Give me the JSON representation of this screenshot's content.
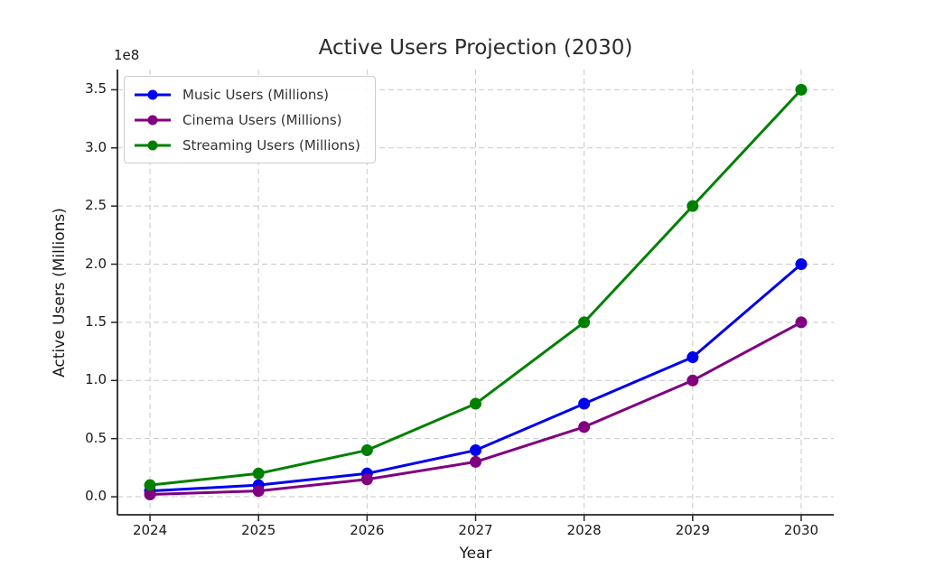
{
  "figure": {
    "title": "Active Users Projection (2030)",
    "xlabel": "Year",
    "ylabel": "Active Users (Millions)",
    "y_offset_label": "1e8"
  },
  "chart_data": {
    "type": "line",
    "title": "Active Users Projection (2030)",
    "xlabel": "Year",
    "ylabel": "Active Users (Millions)",
    "y_axis_multiplier_label": "1e8",
    "x": [
      2024,
      2025,
      2026,
      2027,
      2028,
      2029,
      2030
    ],
    "x_tick_labels": [
      "2024",
      "2025",
      "2026",
      "2027",
      "2028",
      "2029",
      "2030"
    ],
    "y_ticks_in_1e8_units": [
      0.0,
      0.5,
      1.0,
      1.5,
      2.0,
      2.5,
      3.0,
      3.5
    ],
    "y_tick_labels": [
      "0.0",
      "0.5",
      "1.0",
      "1.5",
      "2.0",
      "2.5",
      "3.0",
      "3.5"
    ],
    "unit": "millions of users (axis shows raw counts with 1e8 multiplier)",
    "series": [
      {
        "name": "Music Users (Millions)",
        "color": "#0000ee",
        "values": [
          5,
          10,
          20,
          40,
          80,
          120,
          200
        ]
      },
      {
        "name": "Cinema Users (Millions)",
        "color": "#800080",
        "values": [
          2,
          5,
          15,
          30,
          60,
          100,
          150
        ]
      },
      {
        "name": "Streaming Users (Millions)",
        "color": "#008000",
        "values": [
          10,
          20,
          40,
          80,
          150,
          250,
          350
        ]
      }
    ],
    "xlim": [
      2023.7,
      2030.3
    ],
    "ylim_raw": [
      -15500000,
      367400000
    ],
    "grid": true,
    "grid_style": "dashed",
    "legend_position": "upper left",
    "marker": "circle"
  },
  "style": {
    "background": "#ffffff",
    "grid_color": "#c9c9c9",
    "spine_color": "#262626",
    "tick_color": "#262626",
    "text_color": "#1a1a1a",
    "title_color": "#2b2b2b",
    "legend_border_color": "#cccccc",
    "legend_text_color": "#333333"
  }
}
